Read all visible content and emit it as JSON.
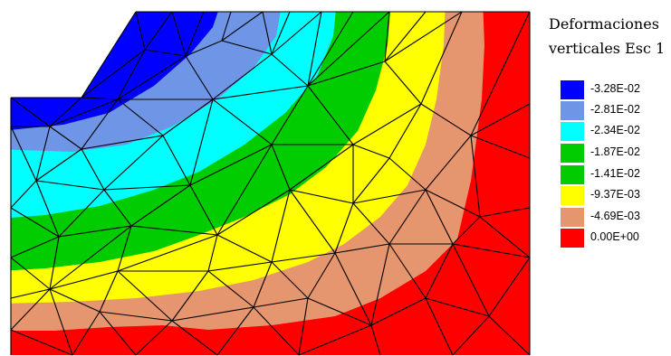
{
  "legend": {
    "title_line1": "Deformaciones",
    "title_line2": "verticales Esc 1",
    "items": [
      {
        "label": "-3.28E-02",
        "color": "#0000ff"
      },
      {
        "label": "-2.81E-02",
        "color": "#6f96e6"
      },
      {
        "label": "-2.34E-02",
        "color": "#00ffff"
      },
      {
        "label": "-1.87E-02",
        "color": "#00cc00"
      },
      {
        "label": "-1.41E-02",
        "color": "#00cc00"
      },
      {
        "label": "-9.37E-03",
        "color": "#ffff00"
      },
      {
        "label": "-4.69E-03",
        "color": "#e6966e"
      },
      {
        "label": "0.00E+00",
        "color": "#ff0000"
      }
    ]
  },
  "contour_colors": {
    "blue": "#0000ff",
    "light_blue": "#6f96e6",
    "cyan": "#00ffff",
    "green": "#00cc00",
    "yellow": "#ffff00",
    "orange": "#e6966e",
    "red": "#ff0000"
  }
}
